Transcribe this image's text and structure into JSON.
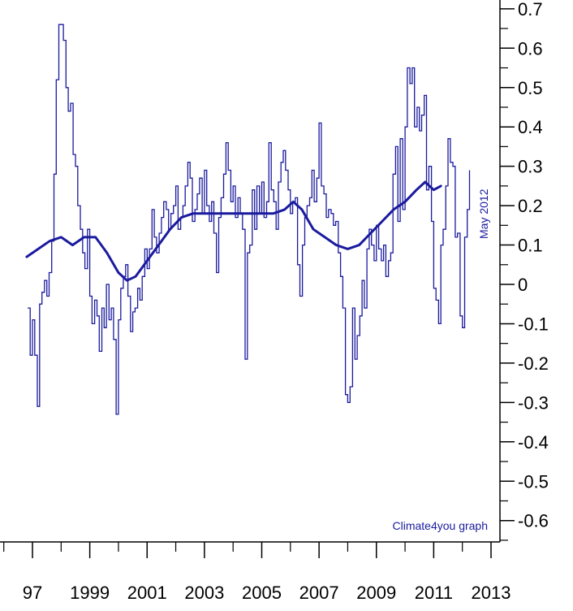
{
  "chart_data": {
    "type": "line",
    "title": "",
    "xlabel": "",
    "ylabel": "",
    "xlim": [
      1996.8,
      2013.0
    ],
    "ylim": [
      -0.62,
      0.72
    ],
    "x_ticks": [
      "97",
      "1999",
      "2001",
      "2003",
      "2005",
      "2007",
      "2009",
      "2011",
      "2013"
    ],
    "y_ticks": [
      "0.7",
      "0.6",
      "0.5",
      "0.4",
      "0.3",
      "0.2",
      "0.1",
      "0",
      "-0.1",
      "-0.2",
      "-0.3",
      "-0.4",
      "-0.5",
      "-0.6"
    ],
    "grid": false,
    "annotations": {
      "date_note": "May 2012",
      "source_note": "Climate4you graph"
    },
    "series": [
      {
        "role": "monthly",
        "color": "#1a1a9e",
        "points": [
          [
            1996.83,
            -0.06
          ],
          [
            1996.92,
            -0.18
          ],
          [
            1997.0,
            -0.09
          ],
          [
            1997.08,
            -0.18
          ],
          [
            1997.17,
            -0.31
          ],
          [
            1997.25,
            -0.05
          ],
          [
            1997.33,
            -0.02
          ],
          [
            1997.42,
            0.01
          ],
          [
            1997.5,
            -0.03
          ],
          [
            1997.58,
            0.03
          ],
          [
            1997.67,
            0.11
          ],
          [
            1997.75,
            0.28
          ],
          [
            1997.83,
            0.52
          ],
          [
            1997.92,
            0.66
          ],
          [
            1998.0,
            0.66
          ],
          [
            1998.08,
            0.62
          ],
          [
            1998.17,
            0.5
          ],
          [
            1998.25,
            0.44
          ],
          [
            1998.33,
            0.46
          ],
          [
            1998.42,
            0.33
          ],
          [
            1998.5,
            0.3
          ],
          [
            1998.58,
            0.2
          ],
          [
            1998.67,
            0.14
          ],
          [
            1998.75,
            0.08
          ],
          [
            1998.83,
            0.04
          ],
          [
            1998.92,
            0.14
          ],
          [
            1999.0,
            -0.03
          ],
          [
            1999.08,
            -0.1
          ],
          [
            1999.17,
            -0.04
          ],
          [
            1999.25,
            -0.08
          ],
          [
            1999.33,
            -0.17
          ],
          [
            1999.42,
            -0.06
          ],
          [
            1999.5,
            -0.11
          ],
          [
            1999.58,
            0.0
          ],
          [
            1999.67,
            -0.09
          ],
          [
            1999.75,
            -0.06
          ],
          [
            1999.83,
            -0.14
          ],
          [
            1999.92,
            -0.33
          ],
          [
            2000.0,
            -0.09
          ],
          [
            2000.08,
            -0.01
          ],
          [
            2000.17,
            0.02
          ],
          [
            2000.25,
            0.05
          ],
          [
            2000.33,
            -0.03
          ],
          [
            2000.42,
            -0.12
          ],
          [
            2000.5,
            -0.07
          ],
          [
            2000.58,
            -0.06
          ],
          [
            2000.67,
            -0.01
          ],
          [
            2000.75,
            -0.04
          ],
          [
            2000.83,
            0.02
          ],
          [
            2000.92,
            0.09
          ],
          [
            2001.0,
            0.04
          ],
          [
            2001.08,
            0.09
          ],
          [
            2001.17,
            0.19
          ],
          [
            2001.25,
            0.12
          ],
          [
            2001.33,
            0.08
          ],
          [
            2001.42,
            0.13
          ],
          [
            2001.5,
            0.17
          ],
          [
            2001.58,
            0.21
          ],
          [
            2001.67,
            0.19
          ],
          [
            2001.75,
            0.14
          ],
          [
            2001.83,
            0.18
          ],
          [
            2001.92,
            0.2
          ],
          [
            2002.0,
            0.25
          ],
          [
            2002.08,
            0.14
          ],
          [
            2002.17,
            0.17
          ],
          [
            2002.25,
            0.2
          ],
          [
            2002.33,
            0.25
          ],
          [
            2002.42,
            0.31
          ],
          [
            2002.5,
            0.27
          ],
          [
            2002.58,
            0.16
          ],
          [
            2002.67,
            0.19
          ],
          [
            2002.75,
            0.23
          ],
          [
            2002.83,
            0.27
          ],
          [
            2002.92,
            0.18
          ],
          [
            2003.0,
            0.29
          ],
          [
            2003.08,
            0.2
          ],
          [
            2003.17,
            0.16
          ],
          [
            2003.25,
            0.21
          ],
          [
            2003.33,
            0.13
          ],
          [
            2003.42,
            0.03
          ],
          [
            2003.5,
            0.17
          ],
          [
            2003.58,
            0.22
          ],
          [
            2003.67,
            0.28
          ],
          [
            2003.75,
            0.36
          ],
          [
            2003.83,
            0.29
          ],
          [
            2003.92,
            0.21
          ],
          [
            2004.0,
            0.25
          ],
          [
            2004.08,
            0.17
          ],
          [
            2004.17,
            0.22
          ],
          [
            2004.25,
            0.18
          ],
          [
            2004.33,
            0.14
          ],
          [
            2004.42,
            -0.19
          ],
          [
            2004.5,
            0.08
          ],
          [
            2004.58,
            0.1
          ],
          [
            2004.67,
            0.24
          ],
          [
            2004.75,
            0.14
          ],
          [
            2004.83,
            0.25
          ],
          [
            2004.92,
            0.18
          ],
          [
            2005.0,
            0.26
          ],
          [
            2005.08,
            0.17
          ],
          [
            2005.17,
            0.21
          ],
          [
            2005.25,
            0.36
          ],
          [
            2005.33,
            0.24
          ],
          [
            2005.42,
            0.21
          ],
          [
            2005.5,
            0.14
          ],
          [
            2005.58,
            0.26
          ],
          [
            2005.67,
            0.31
          ],
          [
            2005.75,
            0.34
          ],
          [
            2005.83,
            0.29
          ],
          [
            2005.92,
            0.24
          ],
          [
            2006.0,
            0.18
          ],
          [
            2006.08,
            0.21
          ],
          [
            2006.17,
            0.22
          ],
          [
            2006.25,
            0.05
          ],
          [
            2006.33,
            -0.03
          ],
          [
            2006.42,
            0.1
          ],
          [
            2006.5,
            0.17
          ],
          [
            2006.58,
            0.2
          ],
          [
            2006.67,
            0.22
          ],
          [
            2006.75,
            0.29
          ],
          [
            2006.83,
            0.21
          ],
          [
            2006.92,
            0.27
          ],
          [
            2007.0,
            0.41
          ],
          [
            2007.08,
            0.25
          ],
          [
            2007.17,
            0.23
          ],
          [
            2007.25,
            0.17
          ],
          [
            2007.33,
            0.19
          ],
          [
            2007.42,
            0.18
          ],
          [
            2007.5,
            0.15
          ],
          [
            2007.58,
            0.16
          ],
          [
            2007.67,
            0.08
          ],
          [
            2007.75,
            0.02
          ],
          [
            2007.83,
            -0.06
          ],
          [
            2007.92,
            -0.28
          ],
          [
            2008.0,
            -0.3
          ],
          [
            2008.08,
            -0.26
          ],
          [
            2008.17,
            -0.06
          ],
          [
            2008.25,
            -0.19
          ],
          [
            2008.33,
            -0.13
          ],
          [
            2008.42,
            -0.08
          ],
          [
            2008.5,
            0.01
          ],
          [
            2008.58,
            -0.06
          ],
          [
            2008.67,
            0.09
          ],
          [
            2008.75,
            0.14
          ],
          [
            2008.83,
            0.1
          ],
          [
            2008.92,
            0.06
          ],
          [
            2009.0,
            0.15
          ],
          [
            2009.08,
            0.09
          ],
          [
            2009.17,
            0.06
          ],
          [
            2009.25,
            0.1
          ],
          [
            2009.33,
            0.02
          ],
          [
            2009.42,
            0.06
          ],
          [
            2009.5,
            0.08
          ],
          [
            2009.58,
            0.28
          ],
          [
            2009.67,
            0.35
          ],
          [
            2009.75,
            0.16
          ],
          [
            2009.83,
            0.37
          ],
          [
            2009.92,
            0.19
          ],
          [
            2010.0,
            0.4
          ],
          [
            2010.08,
            0.55
          ],
          [
            2010.17,
            0.51
          ],
          [
            2010.25,
            0.55
          ],
          [
            2010.33,
            0.4
          ],
          [
            2010.42,
            0.45
          ],
          [
            2010.5,
            0.39
          ],
          [
            2010.58,
            0.43
          ],
          [
            2010.67,
            0.48
          ],
          [
            2010.75,
            0.24
          ],
          [
            2010.83,
            0.3
          ],
          [
            2010.92,
            0.16
          ],
          [
            2011.0,
            -0.01
          ],
          [
            2011.08,
            -0.04
          ],
          [
            2011.17,
            -0.1
          ],
          [
            2011.25,
            0.1
          ],
          [
            2011.33,
            0.14
          ],
          [
            2011.42,
            0.25
          ],
          [
            2011.5,
            0.37
          ],
          [
            2011.58,
            0.31
          ],
          [
            2011.67,
            0.3
          ],
          [
            2011.75,
            0.12
          ],
          [
            2011.83,
            0.13
          ],
          [
            2011.92,
            -0.08
          ],
          [
            2012.0,
            -0.11
          ],
          [
            2012.08,
            0.12
          ],
          [
            2012.17,
            0.19
          ],
          [
            2012.25,
            0.29
          ]
        ]
      },
      {
        "role": "running mean",
        "color": "#1a1a9e",
        "points": [
          [
            1996.8,
            0.07
          ],
          [
            1997.2,
            0.09
          ],
          [
            1997.6,
            0.11
          ],
          [
            1998.0,
            0.12
          ],
          [
            1998.4,
            0.1
          ],
          [
            1998.8,
            0.12
          ],
          [
            1999.2,
            0.12
          ],
          [
            1999.6,
            0.08
          ],
          [
            2000.0,
            0.03
          ],
          [
            2000.3,
            0.01
          ],
          [
            2000.6,
            0.02
          ],
          [
            2001.0,
            0.06
          ],
          [
            2001.4,
            0.1
          ],
          [
            2001.8,
            0.14
          ],
          [
            2002.2,
            0.17
          ],
          [
            2002.6,
            0.18
          ],
          [
            2003.0,
            0.18
          ],
          [
            2003.5,
            0.18
          ],
          [
            2004.0,
            0.18
          ],
          [
            2004.5,
            0.18
          ],
          [
            2005.0,
            0.18
          ],
          [
            2005.4,
            0.18
          ],
          [
            2005.8,
            0.19
          ],
          [
            2006.1,
            0.21
          ],
          [
            2006.4,
            0.19
          ],
          [
            2006.8,
            0.14
          ],
          [
            2007.2,
            0.12
          ],
          [
            2007.6,
            0.1
          ],
          [
            2008.0,
            0.09
          ],
          [
            2008.4,
            0.1
          ],
          [
            2008.8,
            0.13
          ],
          [
            2009.2,
            0.16
          ],
          [
            2009.6,
            0.19
          ],
          [
            2010.0,
            0.21
          ],
          [
            2010.4,
            0.24
          ],
          [
            2010.7,
            0.26
          ],
          [
            2011.0,
            0.24
          ],
          [
            2011.25,
            0.25
          ]
        ]
      }
    ]
  }
}
